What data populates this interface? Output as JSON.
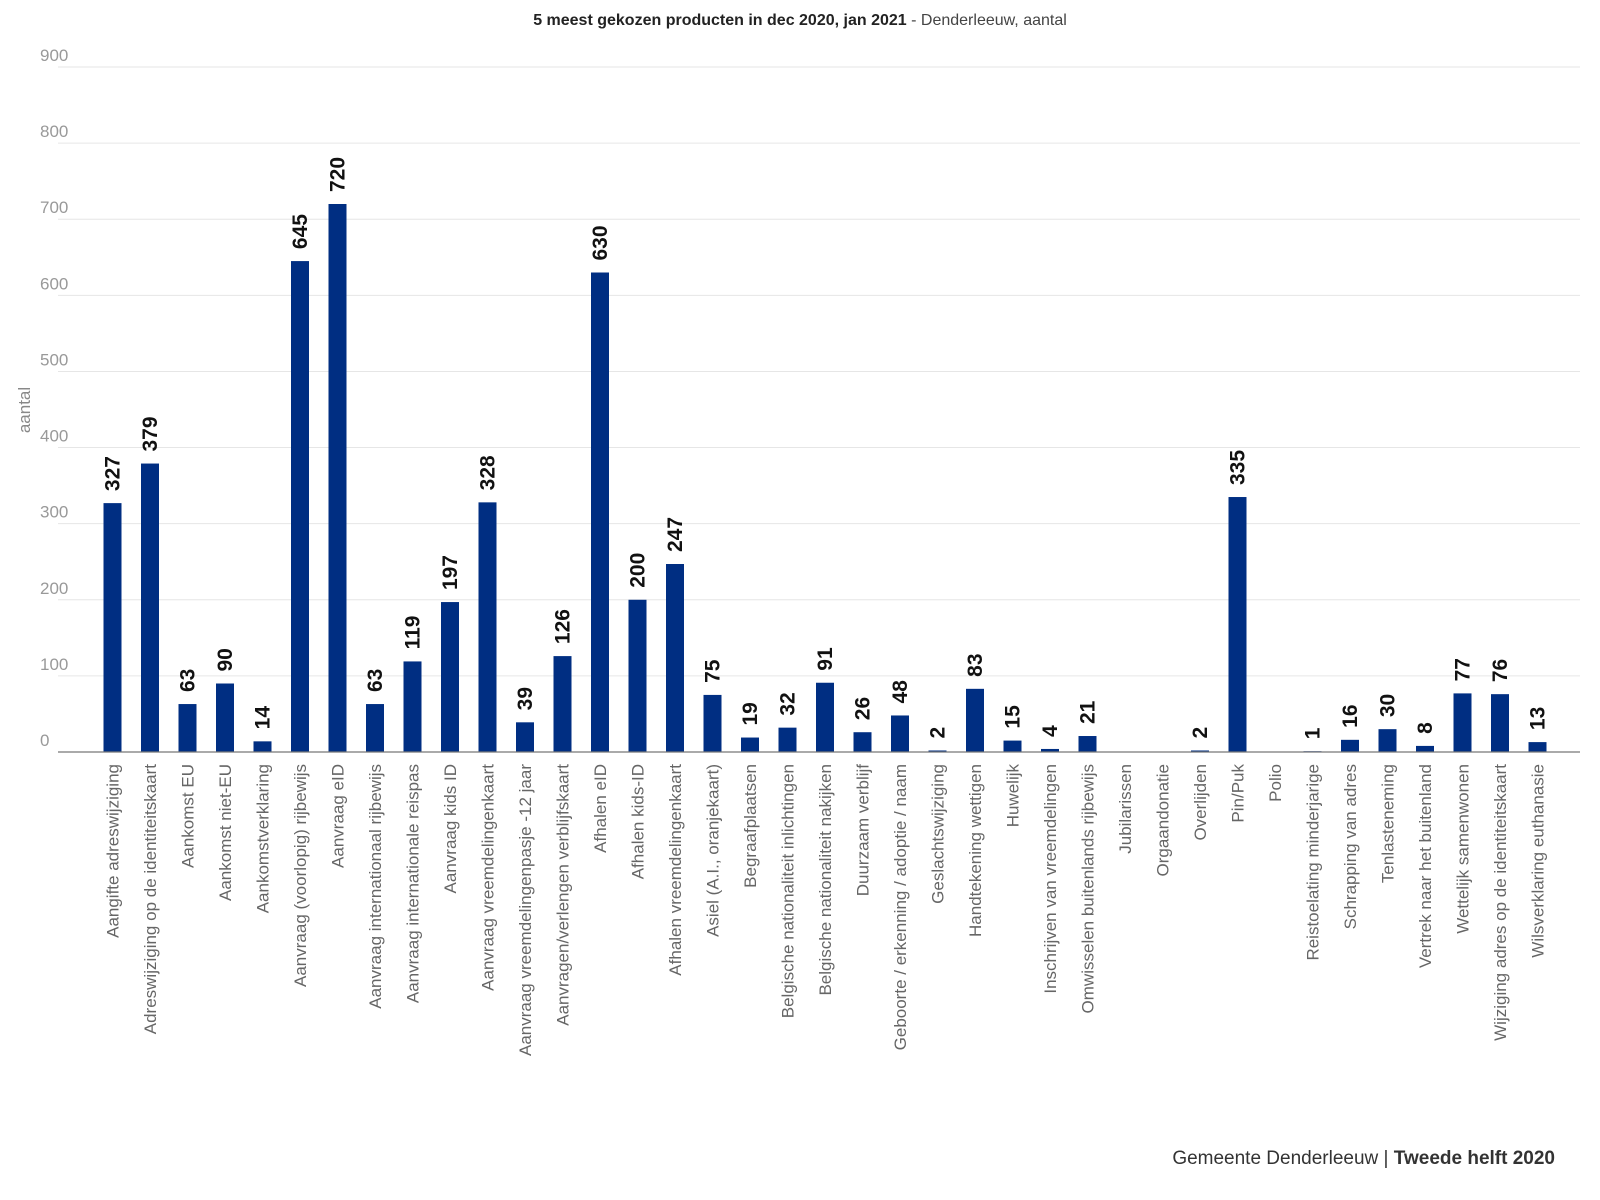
{
  "chart_data": {
    "type": "bar",
    "title": "5 meest gekozen producten in dec 2020, jan 2021",
    "subtitle": "Denderleeuw, aantal",
    "ylabel": "aantal",
    "xlabel": "",
    "ylim": [
      0,
      900
    ],
    "yticks": [
      0,
      100,
      200,
      300,
      400,
      500,
      600,
      700,
      800,
      900
    ],
    "grid": true,
    "bar_color": "#002E82",
    "categories": [
      "Aangifte adreswijziging",
      "Adreswijziging op de identiteitskaart",
      "Aankomst EU",
      "Aankomst niet-EU",
      "Aankomstverklaring",
      "Aanvraag (voorlopig) rijbewijs",
      "Aanvraag eID",
      "Aanvraag internationaal rijbewijs",
      "Aanvraag internationale reispas",
      "Aanvraag kids ID",
      "Aanvraag vreemdelingenkaart",
      "Aanvraag vreemdelingenpasje -12 jaar",
      "Aanvragen/verlengen verblijfskaart",
      "Afhalen eID",
      "Afhalen kids-ID",
      "Afhalen vreemdelingenkaart",
      "Asiel (A.I., oranjekaart)",
      "Begraafplaatsen",
      "Belgische nationaliteit inlichtingen",
      "Belgische nationaliteit nakijken",
      "Duurzaam verblijf",
      "Geboorte / erkenning / adoptie / naam",
      "Geslachtswijziging",
      "Handtekening wettigen",
      "Huwelijk",
      "Inschrijven van vreemdelingen",
      "Omwisselen buitenlands rijbewijs",
      "Jubilarissen",
      "Orgaandonatie",
      "Overlijden",
      "Pin/Puk",
      "Polio",
      "Reistoelating minderjarige",
      "Schrapping van adres",
      "Tenlasteneming",
      "Vertrek naar het buitenland",
      "Wettelijk samenwonen",
      "Wijziging adres op de identiteitskaart",
      "Wilsverklaring euthanasie"
    ],
    "values": [
      327,
      379,
      63,
      90,
      14,
      645,
      720,
      63,
      119,
      197,
      328,
      39,
      126,
      630,
      200,
      247,
      75,
      19,
      32,
      91,
      26,
      48,
      2,
      83,
      15,
      4,
      21,
      null,
      null,
      2,
      335,
      null,
      1,
      16,
      30,
      8,
      77,
      76,
      13
    ]
  },
  "footer": {
    "org": "Gemeente Denderleeuw",
    "separator": " | ",
    "period": "Tweede helft 2020"
  }
}
